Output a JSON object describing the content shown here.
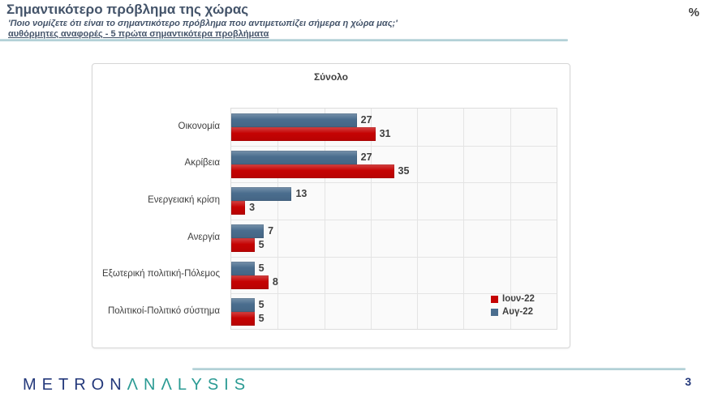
{
  "header": {
    "title": "Σημαντικότερο πρόβλημα της χώρας",
    "subtitle": "'Ποιο νομίζετε ότι  είναι το σημαντικότερο πρόβλημα που αντιμετωπίζει σήμερα η χώρα μας;'",
    "subtitle2": "αυθόρμητες αναφορές - 5 πρώτα σημαντικότερα προβλήματα",
    "unit_label": "%"
  },
  "chart_data": {
    "type": "bar",
    "orientation": "horizontal",
    "title": "Σύνολο",
    "categories": [
      "Οικονομία",
      "Ακρίβεια",
      "Ενεργειακή κρίση",
      "Ανεργία",
      "Εξωτερική πολιτική-Πόλεμος",
      "Πολιτικοί-Πολιτικό σύστημα"
    ],
    "series": [
      {
        "name": "Ιουν-22",
        "color": "#C50303",
        "values": [
          31,
          35,
          3,
          5,
          8,
          5
        ]
      },
      {
        "name": "Αυγ-22",
        "color": "#4A6D8E",
        "values": [
          27,
          27,
          13,
          7,
          5,
          5
        ]
      }
    ],
    "draw_order": [
      1,
      0
    ],
    "xlim": [
      0,
      70
    ],
    "gridline_step": 10,
    "grid": true,
    "legend_position": "inside bottom-right",
    "xlabel": "",
    "ylabel": ""
  },
  "colors": {
    "title_text": "#44546A",
    "chart_text": "#3F3F3F",
    "red_series": "#C50303",
    "blue_series": "#4A6D8E",
    "rule_teal": "#A9CBD2",
    "logo_navy": "#24397B",
    "logo_teal": "#2B9B94",
    "plot_bg": "#FAFAFA",
    "gridline": "#E4E4E4"
  },
  "footer": {
    "logo_part1": "METRON",
    "logo_part2": "ΛNΛLYSIS",
    "page_number": "3"
  }
}
